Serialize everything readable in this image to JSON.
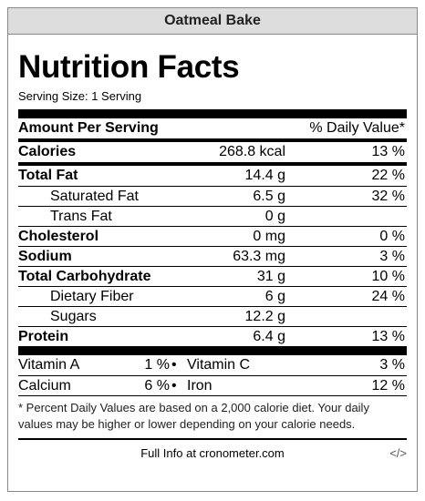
{
  "header": {
    "title": "Oatmeal Bake"
  },
  "label": {
    "title": "Nutrition Facts",
    "serving": "Serving Size: 1 Serving",
    "amount_header": "Amount Per Serving",
    "dv_header": "% Daily Value*",
    "calories": {
      "name": "Calories",
      "amount": "268.8 kcal",
      "dv": "13 %"
    },
    "nutrients": [
      {
        "name": "Total Fat",
        "amount": "14.4 g",
        "dv": "22 %"
      },
      {
        "name": "Saturated Fat",
        "amount": "6.5 g",
        "dv": "32 %"
      },
      {
        "name": "Trans Fat",
        "amount": "0 g"
      },
      {
        "name": "Cholesterol",
        "amount": "0 mg",
        "dv": "0 %"
      },
      {
        "name": "Sodium",
        "amount": "63.3 mg",
        "dv": "3 %"
      },
      {
        "name": "Total Carbohydrate",
        "amount": "31 g",
        "dv": "10 %"
      },
      {
        "name": "Dietary Fiber",
        "amount": "6 g",
        "dv": "24 %"
      },
      {
        "name": "Sugars",
        "amount": "12.2 g"
      },
      {
        "name": "Protein",
        "amount": "6.4 g",
        "dv": "13 %"
      }
    ],
    "vitamins": [
      [
        {
          "name": "Vitamin A",
          "dv": "1 %"
        },
        {
          "name": "Vitamin C",
          "dv": "3 %"
        }
      ],
      [
        {
          "name": "Calcium",
          "dv": "6 %"
        },
        {
          "name": "Iron",
          "dv": "12 %"
        }
      ]
    ],
    "footnote": "* Percent Daily Values are based on a 2,000 calorie diet. Your daily values may be higher or lower depending on your calorie needs."
  },
  "footer": {
    "link": "Full Info at cronometer.com",
    "embed": "</>"
  }
}
